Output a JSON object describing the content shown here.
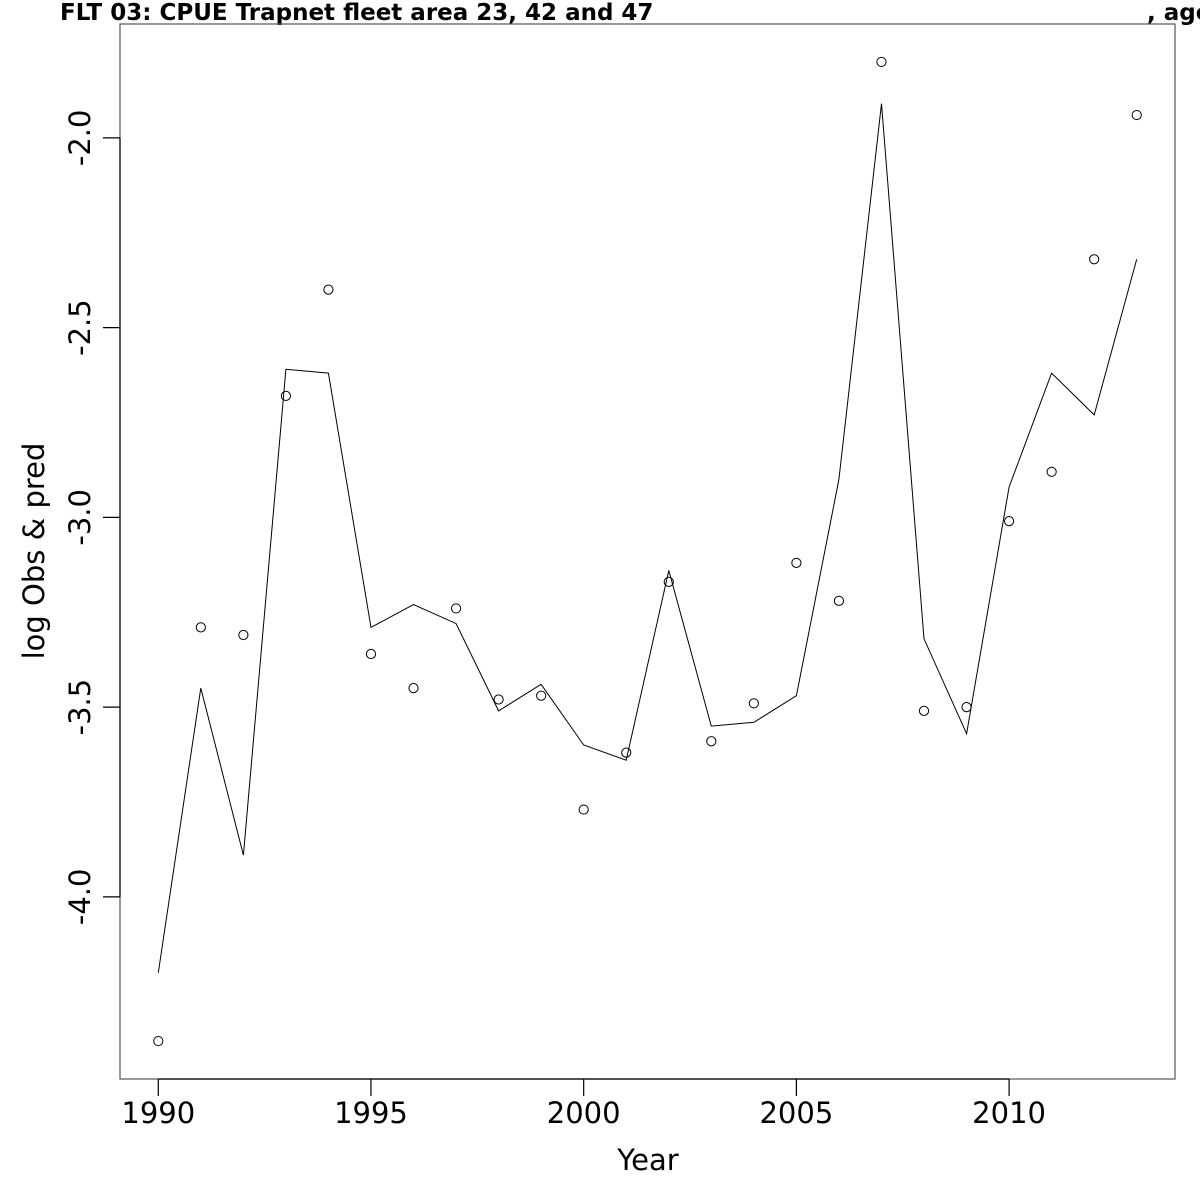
{
  "chart_data": {
    "type": "line",
    "title": "FLT 03: CPUE Trapnet fleet area 23, 42 and 47",
    "title_suffix": ", age",
    "xlabel": "Year",
    "ylabel": "log Obs & pred",
    "xlim": [
      1989.1,
      2013.9
    ],
    "ylim": [
      -4.48,
      -1.7
    ],
    "x_ticks": [
      1990,
      1995,
      2000,
      2005,
      2010
    ],
    "x_tick_labels": [
      "1990",
      "1995",
      "2000",
      "2005",
      "2010"
    ],
    "y_ticks": [
      -4.0,
      -3.5,
      -3.0,
      -2.5,
      -2.0
    ],
    "y_tick_labels": [
      "-4.0",
      "-3.5",
      "-3.0",
      "-2.5",
      "-2.0"
    ],
    "grid": false,
    "legend": "none",
    "series": [
      {
        "style": "points",
        "x": [
          1990,
          1991,
          1992,
          1993,
          1994,
          1995,
          1996,
          1997,
          1998,
          1999,
          2000,
          2001,
          2002,
          2003,
          2004,
          2005,
          2006,
          2007,
          2008,
          2009,
          2010,
          2011,
          2012,
          2013
        ],
        "y": [
          -4.38,
          -3.29,
          -3.31,
          -2.68,
          -2.4,
          -3.36,
          -3.45,
          -3.24,
          -3.48,
          -3.47,
          -3.77,
          -3.62,
          -3.17,
          -3.59,
          -3.49,
          -3.12,
          -3.22,
          -1.8,
          -3.51,
          -3.5,
          -3.01,
          -2.88,
          -2.32,
          -1.94
        ]
      },
      {
        "style": "line",
        "x": [
          1990,
          1991,
          1992,
          1993,
          1994,
          1995,
          1996,
          1997,
          1998,
          1999,
          2000,
          2001,
          2002,
          2003,
          2004,
          2005,
          2006,
          2007,
          2008,
          2009,
          2010,
          2011,
          2012,
          2013
        ],
        "y": [
          -4.2,
          -3.45,
          -3.89,
          -2.61,
          -2.62,
          -3.29,
          -3.23,
          -3.28,
          -3.51,
          -3.44,
          -3.6,
          -3.64,
          -3.14,
          -3.55,
          -3.54,
          -3.47,
          -2.9,
          -1.91,
          -3.32,
          -3.57,
          -2.92,
          -2.62,
          -2.73,
          -2.32
        ]
      }
    ],
    "colors": {
      "line": "#000000",
      "points": "#000000",
      "frame": "#555555"
    }
  }
}
